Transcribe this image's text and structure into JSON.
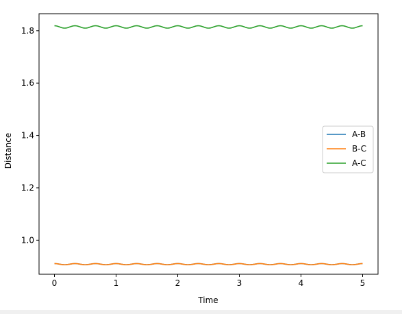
{
  "chart_data": {
    "type": "line",
    "title": "",
    "xlabel": "Time",
    "ylabel": "Distance",
    "xlim": [
      -0.25,
      5.25
    ],
    "ylim": [
      0.87,
      1.865
    ],
    "xticks": [
      0,
      1,
      2,
      3,
      4,
      5
    ],
    "xtick_labels": [
      "0",
      "1",
      "2",
      "3",
      "4",
      "5"
    ],
    "yticks": [
      1.0,
      1.2,
      1.4,
      1.6,
      1.8
    ],
    "ytick_labels": [
      "1.0",
      "1.2",
      "1.4",
      "1.6",
      "1.8"
    ],
    "grid": false,
    "legend_position": "center-right",
    "series": [
      {
        "name": "A-B",
        "color": "#1f77b4",
        "mean": 0.9085,
        "amplitude": 0.0022,
        "period": 0.3333,
        "phase": 0,
        "x_range": [
          0,
          5
        ]
      },
      {
        "name": "B-C",
        "color": "#ff7f0e",
        "mean": 0.9085,
        "amplitude": 0.0022,
        "period": 0.3333,
        "phase": 0,
        "x_range": [
          0,
          5
        ]
      },
      {
        "name": "A-C",
        "color": "#2ca02c",
        "mean": 1.8145,
        "amplitude": 0.0045,
        "period": 0.3333,
        "phase": 0,
        "x_range": [
          0,
          5
        ]
      }
    ]
  }
}
